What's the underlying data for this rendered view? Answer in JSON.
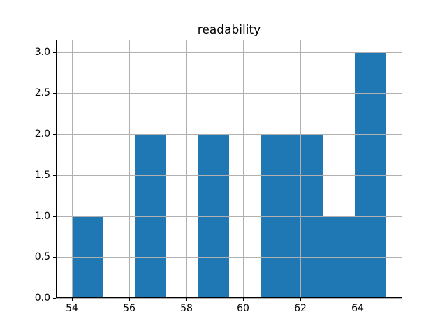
{
  "chart_data": {
    "type": "bar",
    "subtype": "histogram",
    "title": "readability",
    "xlabel": "",
    "ylabel": "",
    "bin_edges": [
      54.0,
      55.1,
      56.2,
      57.3,
      58.4,
      59.5,
      60.6,
      61.7,
      62.8,
      63.9,
      65.0
    ],
    "counts": [
      1,
      0,
      2,
      0,
      2,
      0,
      2,
      2,
      1,
      3
    ],
    "xlim": [
      53.45,
      65.55
    ],
    "ylim": [
      0,
      3.15
    ],
    "x_ticks": [
      54,
      56,
      58,
      60,
      62,
      64
    ],
    "x_tick_labels": [
      "54",
      "56",
      "58",
      "60",
      "62",
      "64"
    ],
    "y_ticks": [
      0.0,
      0.5,
      1.0,
      1.5,
      2.0,
      2.5,
      3.0
    ],
    "y_tick_labels": [
      "0.0",
      "0.5",
      "1.0",
      "1.5",
      "2.0",
      "2.5",
      "3.0"
    ],
    "grid": true,
    "grid_above_bars": true,
    "colors": {
      "bar": "#1f77b4",
      "grid": "#b0b0b0",
      "spine": "#000000",
      "text": "#000000",
      "background": "#ffffff"
    }
  }
}
